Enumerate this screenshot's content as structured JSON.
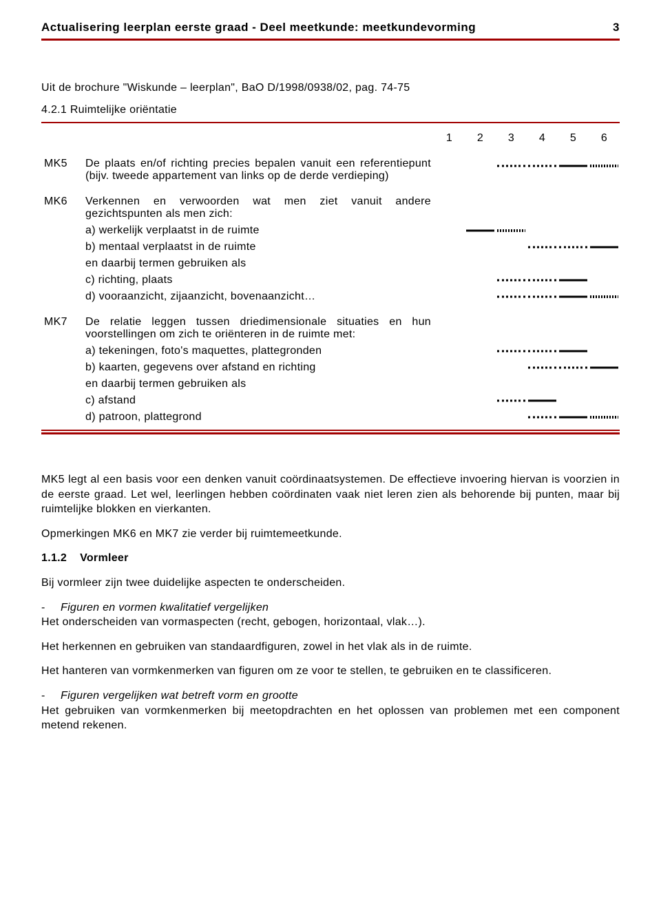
{
  "header": {
    "title": "Actualisering leerplan eerste graad  -  Deel meetkunde: meetkundevorming",
    "page_number": "3"
  },
  "intro_line": "Uit de brochure \"Wiskunde – leerplan\", BaO D/1998/0938/02, pag. 74-75",
  "section_heading": "4.2.1  Ruimtelijke oriëntatie",
  "columns": [
    "1",
    "2",
    "3",
    "4",
    "5",
    "6"
  ],
  "rows": [
    {
      "code": "MK5",
      "lines": [
        {
          "text": "De plaats en/of richting precies bepalen vanuit een referentiepunt (bijv. tweede appartement van links op de derde verdieping)",
          "pattern": [
            "",
            "",
            "dotted",
            "dotted",
            "solid",
            "hatch"
          ]
        }
      ]
    },
    {
      "code": "MK6",
      "lines": [
        {
          "text": "Verkennen en verwoorden wat men ziet vanuit andere gezichtspunten als men zich:",
          "pattern": [
            "",
            "",
            "",
            "",
            "",
            ""
          ]
        },
        {
          "text": "a)  werkelijk verplaatst in de ruimte",
          "pattern": [
            "",
            "solid",
            "hatch",
            "",
            "",
            ""
          ]
        },
        {
          "text": "b)  mentaal verplaatst in de ruimte",
          "pattern": [
            "",
            "",
            "",
            "dotted",
            "dotted",
            "solid"
          ]
        },
        {
          "text": "en daarbij termen gebruiken als",
          "pattern": [
            "",
            "",
            "",
            "",
            "",
            ""
          ]
        },
        {
          "text": "c)  richting, plaats",
          "pattern": [
            "",
            "",
            "dotted",
            "dotted",
            "solid",
            ""
          ]
        },
        {
          "text": "d)  vooraanzicht, zijaanzicht, bovenaanzicht…",
          "pattern": [
            "",
            "",
            "dotted",
            "dotted",
            "solid",
            "hatch"
          ]
        }
      ]
    },
    {
      "code": "MK7",
      "lines": [
        {
          "text": "De relatie leggen tussen driedimensionale situaties en hun voorstellingen om zich te oriënteren in de ruimte met:",
          "pattern": [
            "",
            "",
            "",
            "",
            "",
            ""
          ]
        },
        {
          "text": "a)  tekeningen, foto's maquettes, plattegronden",
          "pattern": [
            "",
            "",
            "dotted",
            "dotted",
            "solid",
            ""
          ]
        },
        {
          "text": "b)  kaarten, gegevens over afstand en richting",
          "pattern": [
            "",
            "",
            "",
            "dotted",
            "dotted",
            "solid"
          ]
        },
        {
          "text": "en daarbij termen gebruiken als",
          "pattern": [
            "",
            "",
            "",
            "",
            "",
            ""
          ]
        },
        {
          "text": "c)  afstand",
          "pattern": [
            "",
            "",
            "dotted",
            "solid",
            "",
            ""
          ]
        },
        {
          "text": "d)  patroon, plattegrond",
          "pattern": [
            "",
            "",
            "",
            "dotted",
            "solid",
            "hatch"
          ]
        }
      ]
    }
  ],
  "body": {
    "p1": "MK5 legt al een basis voor een denken vanuit coördinaatsystemen. De effectieve invoering hiervan is voorzien in de eerste graad. Let wel, leerlingen hebben coördinaten vaak niet leren zien als behorende bij punten, maar bij ruimtelijke blokken en vierkanten.",
    "p2": "Opmerkingen MK6 en MK7 zie verder bij ruimtemeetkunde.",
    "sec_num": "1.1.2",
    "sec_title": "Vormleer",
    "p3": "Bij vormleer zijn twee duidelijke aspecten te onderscheiden.",
    "d1": "Figuren en vormen kwalitatief vergelijken",
    "d1a": "Het onderscheiden van vormaspecten (recht, gebogen, horizontaal, vlak…).",
    "d1b": "Het herkennen en gebruiken van standaardfiguren, zowel in het vlak als in de ruimte.",
    "d1c": "Het hanteren van vormkenmerken van figuren om ze voor te stellen, te gebruiken en te classificeren.",
    "d2": "Figuren vergelijken wat betreft vorm en grootte",
    "d2a": "Het gebruiken van vormkenmerken bij meetopdrachten en het oplossen van problemen met een component metend rekenen."
  },
  "colors": {
    "accent": "#a10000",
    "text": "#000000",
    "background": "#ffffff"
  }
}
